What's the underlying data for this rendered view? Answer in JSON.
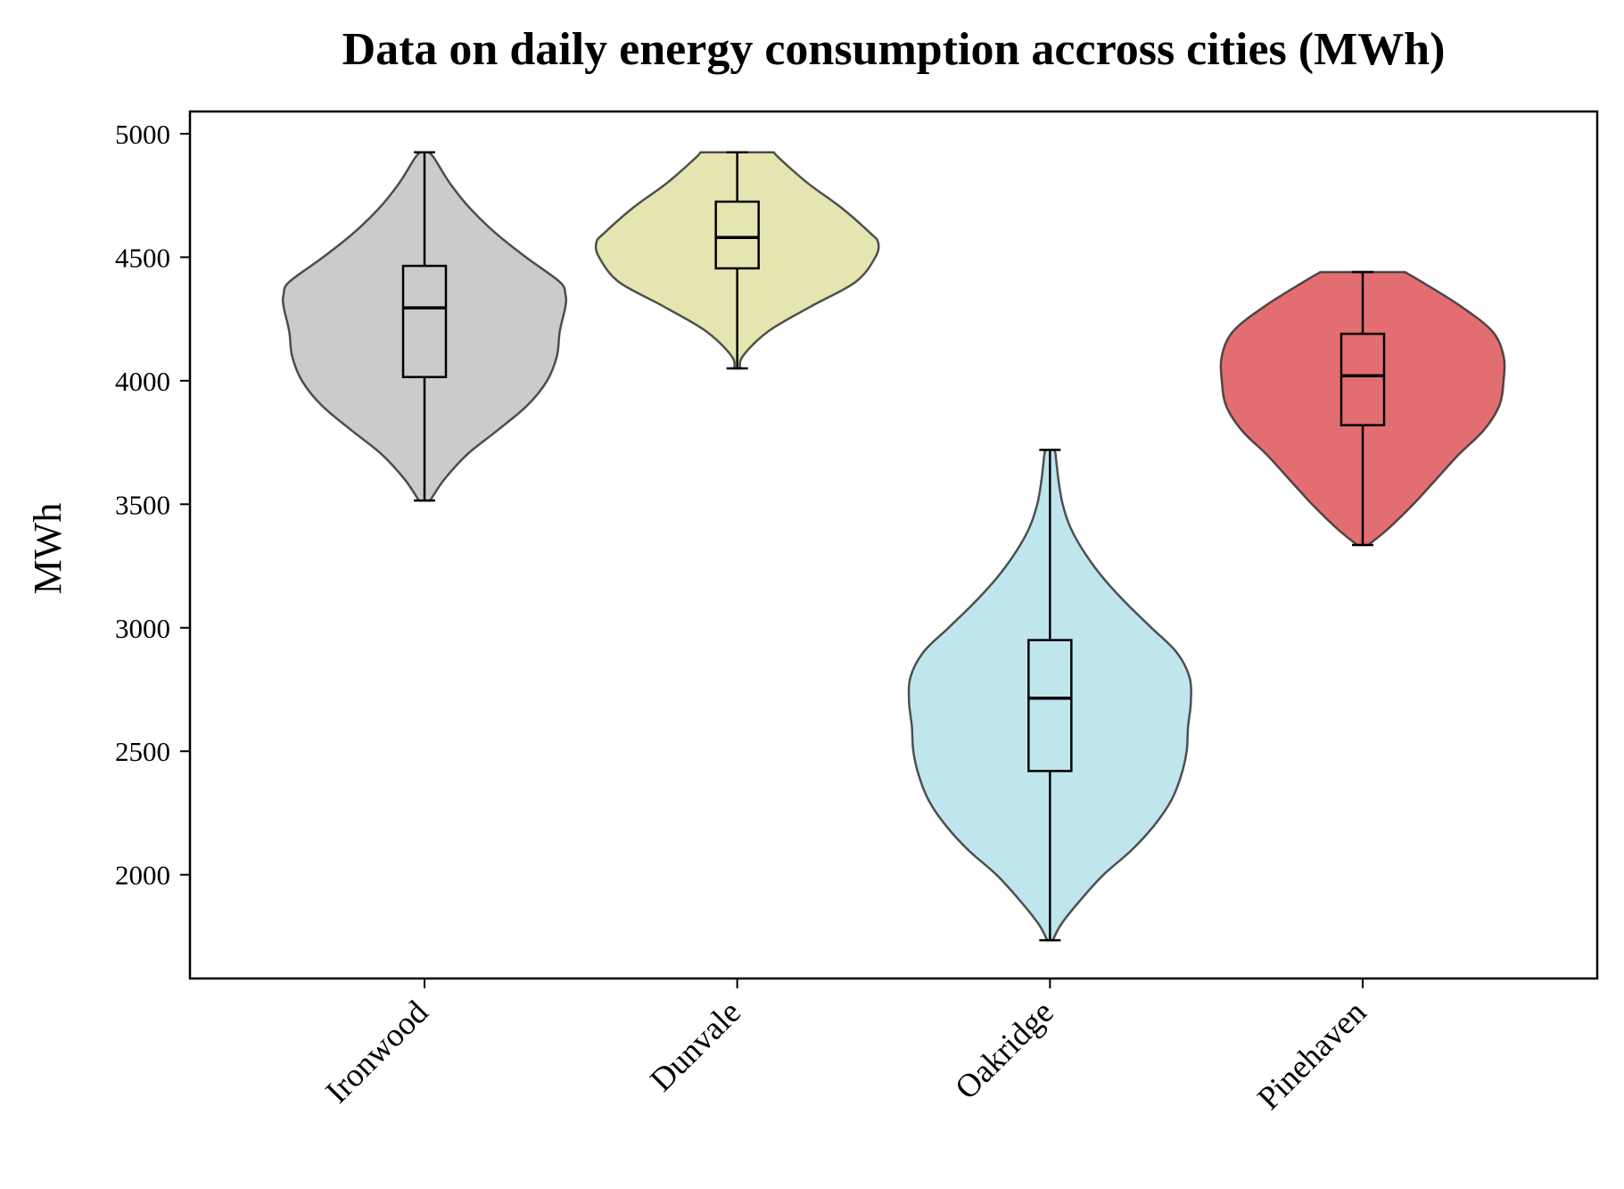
{
  "chart_data": {
    "type": "violin",
    "title": "Data on daily energy consumption accross cities (MWh)",
    "xlabel": "",
    "ylabel": "MWh",
    "ylim": [
      1580,
      5090
    ],
    "yticks": [
      2000,
      2500,
      3000,
      3500,
      4000,
      4500,
      5000
    ],
    "grid": false,
    "categories": [
      "Ironwood",
      "Dunvale",
      "Oakridge",
      "Pinehaven"
    ],
    "series": [
      {
        "category": "Ironwood",
        "color": "#c8c8c8",
        "min": 3515,
        "q1": 4015,
        "median": 4295,
        "q3": 4465,
        "max": 4925,
        "density": [
          [
            3515,
            0.04
          ],
          [
            3600,
            0.14
          ],
          [
            3700,
            0.3
          ],
          [
            3800,
            0.52
          ],
          [
            3900,
            0.73
          ],
          [
            4000,
            0.87
          ],
          [
            4100,
            0.94
          ],
          [
            4200,
            0.96
          ],
          [
            4300,
            1.0
          ],
          [
            4350,
            1.0
          ],
          [
            4400,
            0.96
          ],
          [
            4500,
            0.72
          ],
          [
            4600,
            0.5
          ],
          [
            4700,
            0.32
          ],
          [
            4800,
            0.18
          ],
          [
            4900,
            0.07
          ],
          [
            4925,
            0.03
          ]
        ]
      },
      {
        "category": "Dunvale",
        "color": "#e4e4ae",
        "min": 4050,
        "q1": 4455,
        "median": 4580,
        "q3": 4725,
        "max": 4925,
        "density": [
          [
            4050,
            0.02
          ],
          [
            4100,
            0.04
          ],
          [
            4200,
            0.22
          ],
          [
            4300,
            0.52
          ],
          [
            4400,
            0.84
          ],
          [
            4500,
            0.98
          ],
          [
            4560,
            1.0
          ],
          [
            4600,
            0.94
          ],
          [
            4700,
            0.74
          ],
          [
            4800,
            0.5
          ],
          [
            4900,
            0.3
          ],
          [
            4925,
            0.26
          ]
        ]
      },
      {
        "category": "Oakridge",
        "color": "#bde5ec",
        "min": 1735,
        "q1": 2420,
        "median": 2715,
        "q3": 2950,
        "max": 3720,
        "density": [
          [
            1735,
            0.02
          ],
          [
            1800,
            0.08
          ],
          [
            1900,
            0.22
          ],
          [
            2000,
            0.38
          ],
          [
            2100,
            0.58
          ],
          [
            2200,
            0.74
          ],
          [
            2300,
            0.86
          ],
          [
            2400,
            0.93
          ],
          [
            2500,
            0.97
          ],
          [
            2600,
            0.98
          ],
          [
            2700,
            1.0
          ],
          [
            2800,
            0.99
          ],
          [
            2900,
            0.9
          ],
          [
            3000,
            0.72
          ],
          [
            3100,
            0.54
          ],
          [
            3200,
            0.38
          ],
          [
            3300,
            0.25
          ],
          [
            3400,
            0.15
          ],
          [
            3500,
            0.09
          ],
          [
            3600,
            0.06
          ],
          [
            3700,
            0.04
          ],
          [
            3720,
            0.03
          ]
        ]
      },
      {
        "category": "Pinehaven",
        "color": "#e06669",
        "min": 3335,
        "q1": 3820,
        "median": 4020,
        "q3": 4190,
        "max": 4440,
        "density": [
          [
            3335,
            0.04
          ],
          [
            3400,
            0.18
          ],
          [
            3500,
            0.36
          ],
          [
            3600,
            0.52
          ],
          [
            3700,
            0.68
          ],
          [
            3800,
            0.86
          ],
          [
            3900,
            0.97
          ],
          [
            4000,
            1.0
          ],
          [
            4100,
            1.0
          ],
          [
            4200,
            0.92
          ],
          [
            4300,
            0.7
          ],
          [
            4400,
            0.42
          ],
          [
            4440,
            0.3
          ]
        ]
      }
    ]
  }
}
